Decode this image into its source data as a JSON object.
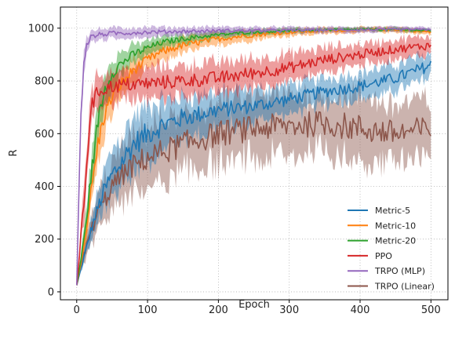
{
  "chart_data": {
    "type": "line",
    "title": "",
    "xlabel": "Epoch",
    "ylabel": "R",
    "xlim": [
      -23,
      524
    ],
    "ylim": [
      -30,
      1080
    ],
    "xticks": [
      0,
      100,
      200,
      300,
      400,
      500
    ],
    "yticks": [
      0,
      200,
      400,
      600,
      800,
      1000
    ],
    "grid": true,
    "legend_position": "lower-right",
    "series": [
      {
        "name": "Metric-5",
        "color": "#1f77b4",
        "x": [
          0,
          10,
          20,
          30,
          40,
          50,
          60,
          70,
          80,
          100,
          120,
          150,
          200,
          250,
          300,
          350,
          400,
          450,
          480,
          500
        ],
        "y": [
          25,
          130,
          230,
          320,
          390,
          440,
          480,
          520,
          560,
          600,
          630,
          660,
          690,
          705,
          730,
          760,
          780,
          810,
          840,
          860
        ],
        "band": [
          0,
          20,
          40,
          60,
          80,
          100,
          100,
          100,
          100,
          100,
          90,
          80,
          70,
          60,
          55,
          50,
          50,
          50,
          50,
          50
        ]
      },
      {
        "name": "Metric-10",
        "color": "#ff7f0e",
        "x": [
          0,
          10,
          20,
          30,
          40,
          50,
          60,
          70,
          80,
          100,
          120,
          150,
          200,
          250,
          300,
          350,
          400,
          450,
          500
        ],
        "y": [
          25,
          170,
          370,
          560,
          680,
          740,
          780,
          810,
          840,
          880,
          910,
          935,
          960,
          975,
          985,
          990,
          993,
          995,
          985
        ],
        "band": [
          0,
          30,
          60,
          80,
          70,
          60,
          55,
          50,
          45,
          40,
          35,
          30,
          25,
          20,
          15,
          12,
          10,
          10,
          10
        ]
      },
      {
        "name": "Metric-20",
        "color": "#2ca02c",
        "x": [
          0,
          10,
          20,
          30,
          40,
          50,
          60,
          70,
          80,
          100,
          120,
          150,
          200,
          250,
          300,
          350,
          400,
          450,
          500
        ],
        "y": [
          25,
          190,
          430,
          650,
          770,
          830,
          860,
          880,
          900,
          925,
          945,
          960,
          975,
          985,
          990,
          993,
          995,
          995,
          990
        ],
        "band": [
          0,
          40,
          70,
          70,
          60,
          50,
          45,
          40,
          35,
          30,
          25,
          20,
          15,
          12,
          10,
          8,
          8,
          8,
          8
        ]
      },
      {
        "name": "PPO",
        "color": "#d62728",
        "x": [
          0,
          10,
          15,
          20,
          30,
          40,
          50,
          70,
          100,
          150,
          200,
          250,
          300,
          350,
          400,
          450,
          500
        ],
        "y": [
          25,
          330,
          520,
          700,
          760,
          770,
          780,
          785,
          790,
          800,
          810,
          830,
          850,
          880,
          900,
          920,
          935
        ],
        "band": [
          0,
          70,
          70,
          70,
          60,
          60,
          60,
          60,
          60,
          60,
          60,
          55,
          50,
          45,
          40,
          35,
          35
        ]
      },
      {
        "name": "TRPO (MLP)",
        "color": "#9467bd",
        "x": [
          0,
          5,
          10,
          15,
          20,
          30,
          50,
          100,
          150,
          200,
          300,
          400,
          500
        ],
        "y": [
          25,
          600,
          880,
          945,
          965,
          975,
          980,
          985,
          988,
          990,
          992,
          994,
          995
        ],
        "band": [
          0,
          60,
          45,
          30,
          25,
          20,
          20,
          18,
          15,
          15,
          12,
          10,
          10
        ]
      },
      {
        "name": "TRPO (Linear)",
        "color": "#8c564b",
        "x": [
          0,
          10,
          20,
          30,
          40,
          50,
          70,
          100,
          150,
          200,
          250,
          300,
          350,
          400,
          450,
          500
        ],
        "y": [
          25,
          140,
          230,
          300,
          350,
          400,
          460,
          510,
          560,
          600,
          620,
          630,
          640,
          620,
          600,
          620
        ],
        "band": [
          0,
          30,
          50,
          70,
          80,
          90,
          100,
          110,
          110,
          110,
          110,
          110,
          110,
          120,
          110,
          110
        ]
      }
    ]
  }
}
